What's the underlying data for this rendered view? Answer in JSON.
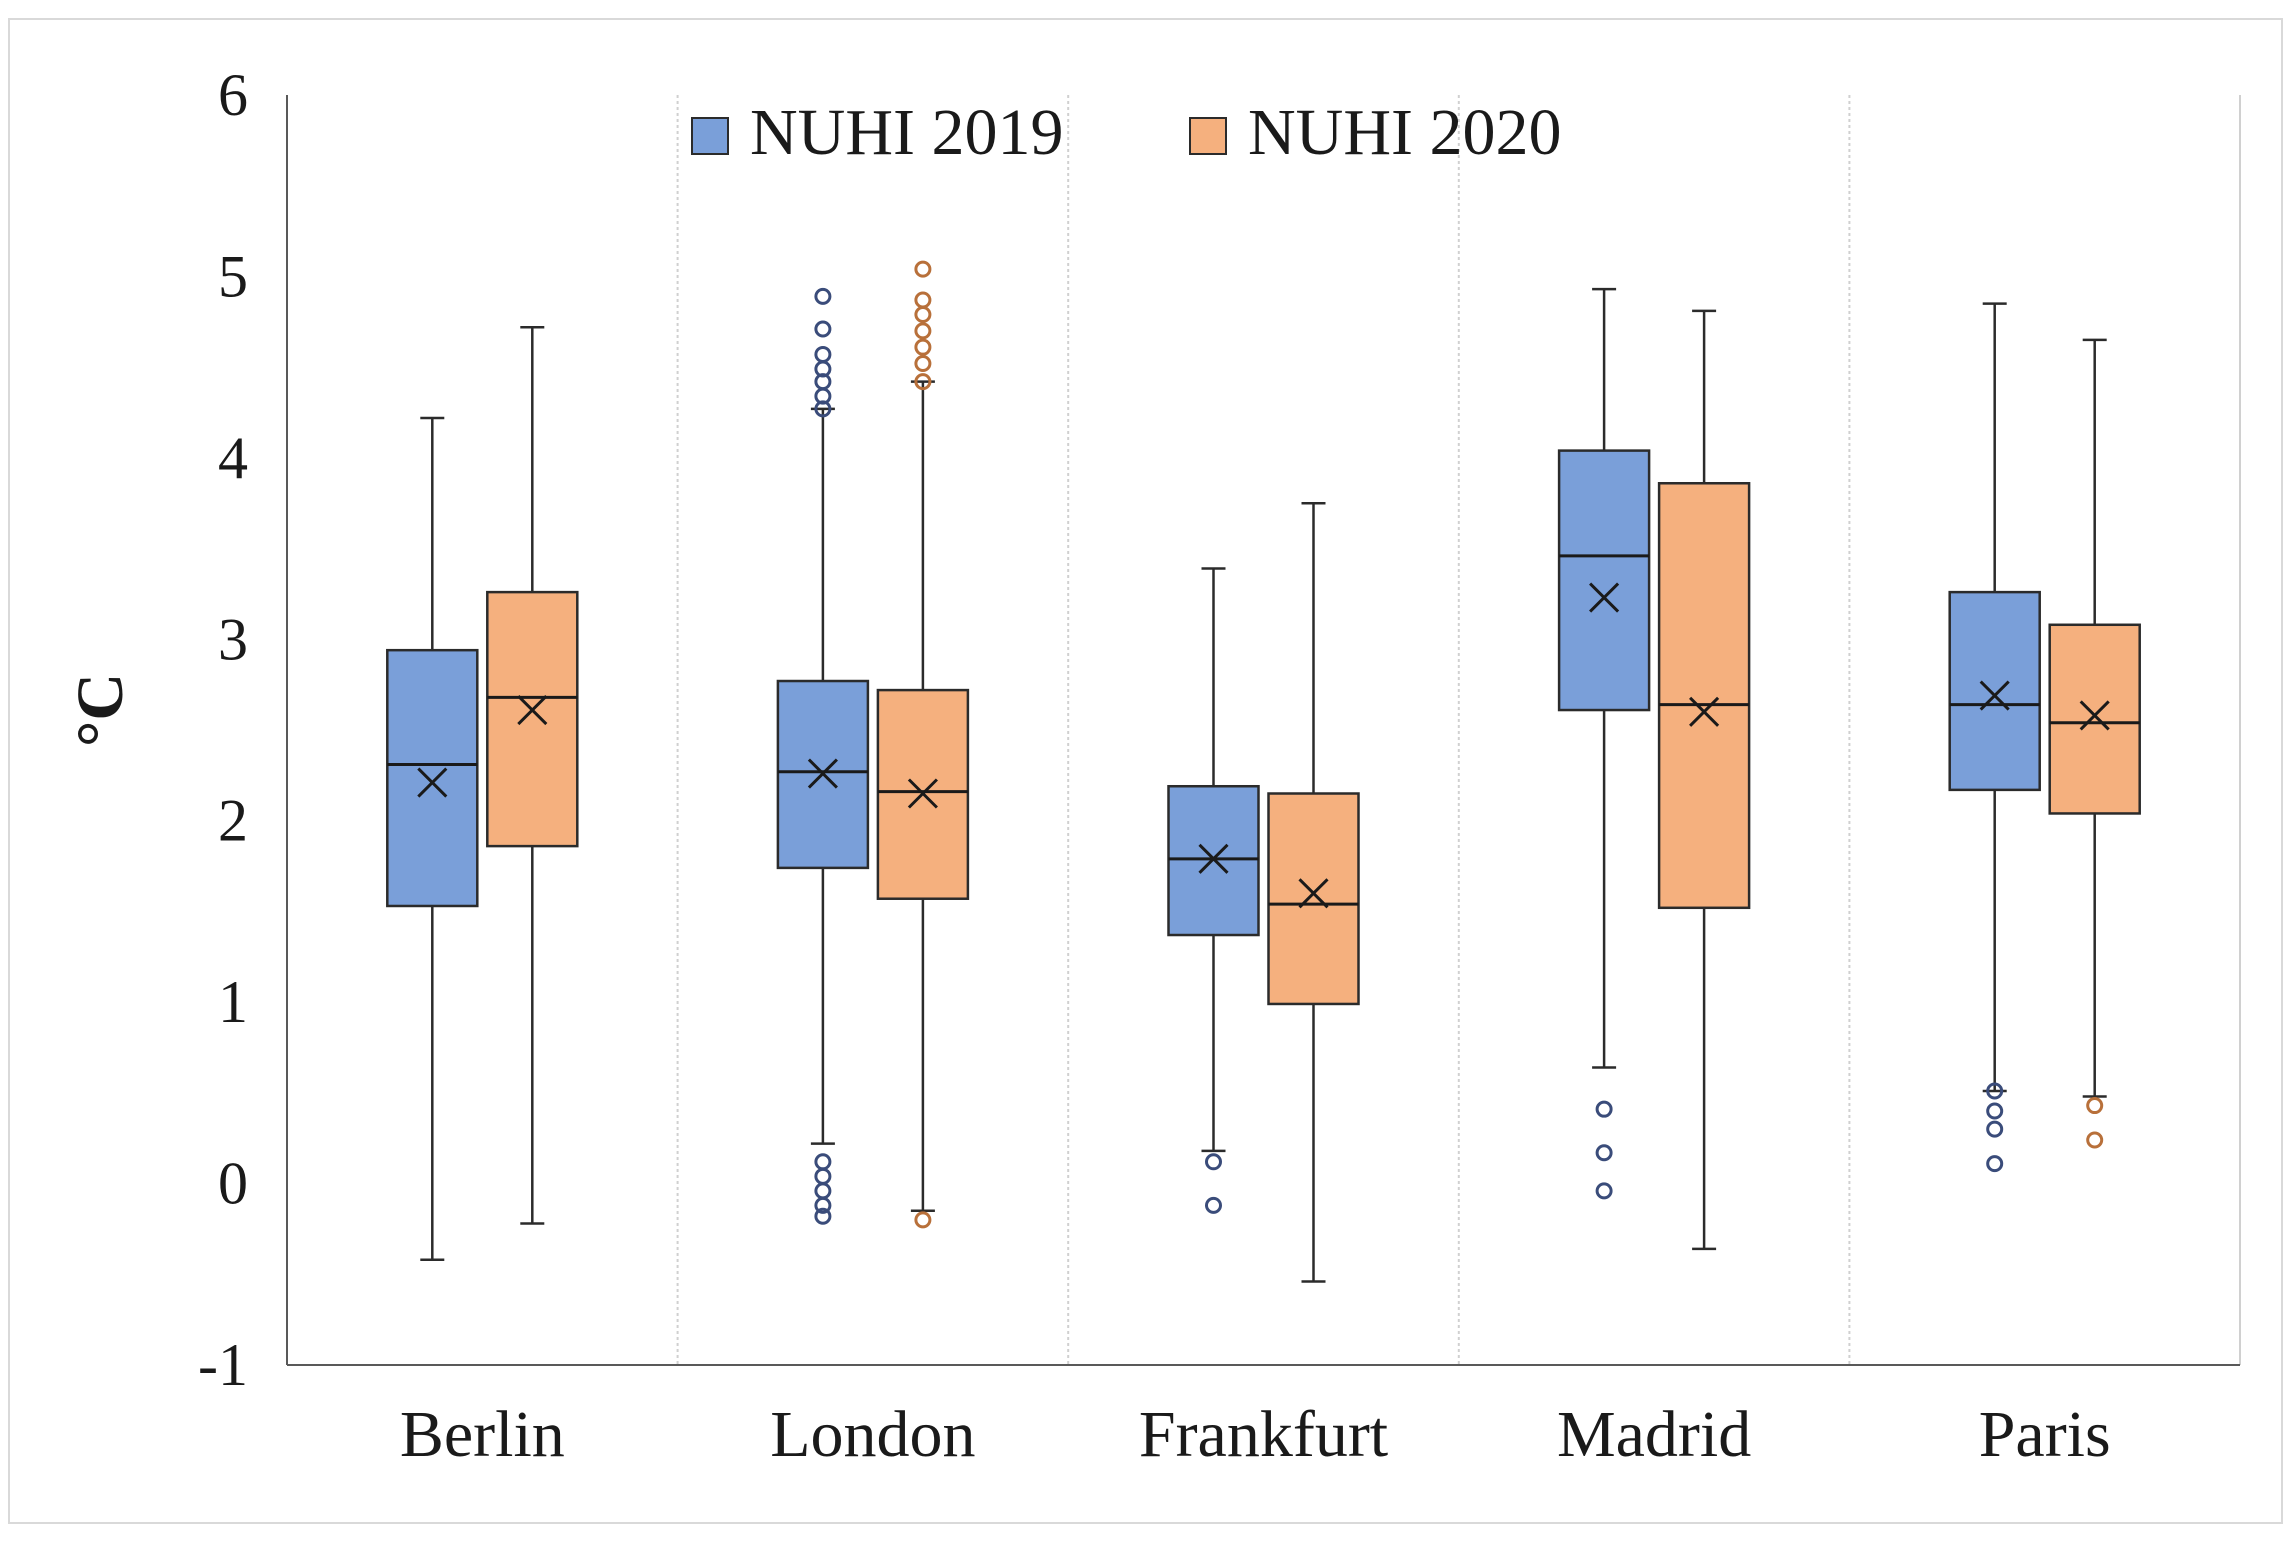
{
  "chart_data": {
    "type": "box",
    "title": "",
    "xlabel": "",
    "ylabel": "°C",
    "ylim": [
      -1,
      6
    ],
    "yticks": [
      -1,
      0,
      1,
      2,
      3,
      4,
      5,
      6
    ],
    "grid": false,
    "legend_position": "top-center",
    "categories": [
      "Berlin",
      "London",
      "Frankfurt",
      "Madrid",
      "Paris"
    ],
    "series": [
      {
        "name": "NUHI 2019",
        "color": "#7a9fd9",
        "boxes": [
          {
            "category": "Berlin",
            "whisker_low": -0.42,
            "q1": 1.53,
            "median": 2.31,
            "q3": 2.94,
            "whisker_high": 4.22,
            "mean": 2.21,
            "outliers": []
          },
          {
            "category": "London",
            "whisker_low": 0.22,
            "q1": 1.74,
            "median": 2.27,
            "q3": 2.77,
            "whisker_high": 4.27,
            "mean": 2.26,
            "outliers": [
              -0.18,
              -0.12,
              -0.04,
              0.04,
              0.12,
              4.27,
              4.34,
              4.42,
              4.49,
              4.57,
              4.71,
              4.89
            ]
          },
          {
            "category": "Frankfurt",
            "whisker_low": 0.18,
            "q1": 1.37,
            "median": 1.79,
            "q3": 2.19,
            "whisker_high": 3.39,
            "mean": 1.79,
            "outliers": [
              -0.12,
              0.12
            ]
          },
          {
            "category": "Madrid",
            "whisker_low": 0.64,
            "q1": 2.61,
            "median": 3.46,
            "q3": 4.04,
            "whisker_high": 4.93,
            "mean": 3.23,
            "outliers": [
              -0.04,
              0.17,
              0.41
            ]
          },
          {
            "category": "Paris",
            "whisker_low": 0.51,
            "q1": 2.17,
            "median": 2.64,
            "q3": 3.26,
            "whisker_high": 4.85,
            "mean": 2.69,
            "outliers": [
              0.11,
              0.3,
              0.4,
              0.51
            ]
          }
        ]
      },
      {
        "name": "NUHI 2020",
        "color": "#f5b07e",
        "boxes": [
          {
            "category": "Berlin",
            "whisker_low": -0.22,
            "q1": 1.86,
            "median": 2.68,
            "q3": 3.26,
            "whisker_high": 4.72,
            "mean": 2.61,
            "outliers": []
          },
          {
            "category": "London",
            "whisker_low": -0.15,
            "q1": 1.57,
            "median": 2.16,
            "q3": 2.72,
            "whisker_high": 4.42,
            "mean": 2.15,
            "outliers": [
              -0.2,
              4.42,
              4.52,
              4.61,
              4.7,
              4.79,
              4.87,
              5.04
            ]
          },
          {
            "category": "Frankfurt",
            "whisker_low": -0.54,
            "q1": 0.99,
            "median": 1.54,
            "q3": 2.15,
            "whisker_high": 3.75,
            "mean": 1.6,
            "outliers": []
          },
          {
            "category": "Madrid",
            "whisker_low": -0.36,
            "q1": 1.52,
            "median": 2.64,
            "q3": 3.86,
            "whisker_high": 4.81,
            "mean": 2.6,
            "outliers": []
          },
          {
            "category": "Paris",
            "whisker_low": 0.48,
            "q1": 2.04,
            "median": 2.54,
            "q3": 3.08,
            "whisker_high": 4.65,
            "mean": 2.58,
            "outliers": [
              0.24,
              0.43
            ]
          }
        ]
      }
    ]
  }
}
